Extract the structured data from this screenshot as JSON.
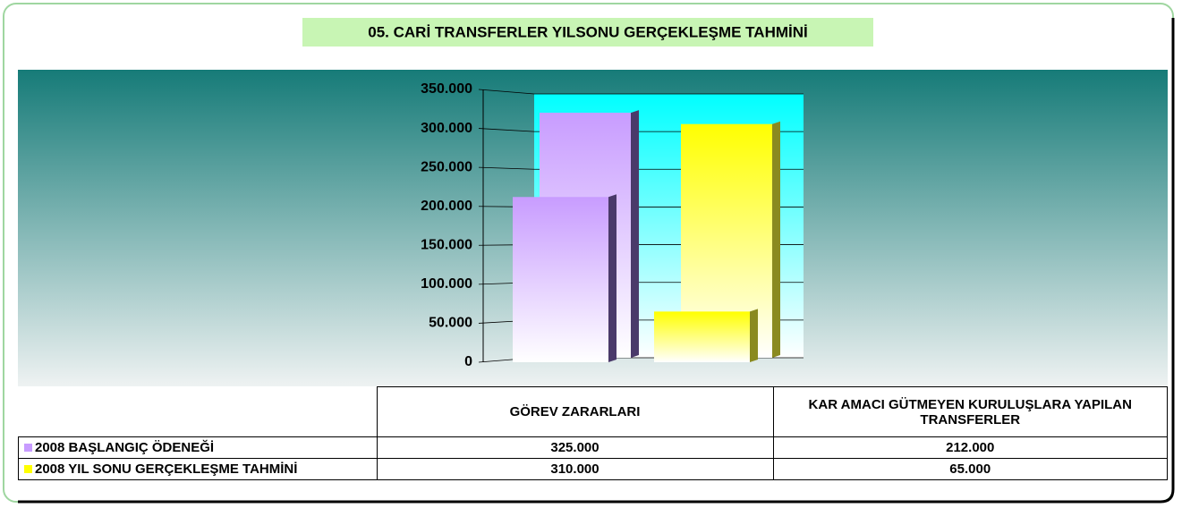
{
  "chart_data": {
    "type": "bar3d",
    "title": "05. CARİ TRANSFERLER YILSONU GERÇEKLEŞME TAHMİNİ",
    "categories": [
      "GÖREV ZARARLARI",
      "KAR AMACI GÜTMEYEN KURULUŞLARA YAPILAN TRANSFERLER"
    ],
    "series": [
      {
        "name": "2008 BAŞLANGIÇ ÖDENEĞİ",
        "color": "#c89cff",
        "values": [
          325000,
          212000
        ],
        "value_labels": [
          "325.000",
          "212.000"
        ]
      },
      {
        "name": "2008 YIL SONU GERÇEKLEŞME TAHMİNİ",
        "color": "#ffff00",
        "values": [
          310000,
          65000
        ],
        "value_labels": [
          "310.000",
          "65.000"
        ]
      }
    ],
    "ylim": [
      0,
      350000
    ],
    "yticks": [
      0,
      {
        "value": 50000,
        "label": "50.000"
      },
      {
        "value": 100000,
        "label": "100.000"
      },
      {
        "value": 150000,
        "label": "150.000"
      },
      {
        "value": 200000,
        "label": "200.000"
      },
      {
        "value": 250000,
        "label": "250.000"
      },
      {
        "value": 300000,
        "label": "300.000"
      },
      {
        "value": 350000,
        "label": "350.000"
      }
    ],
    "grid": true
  }
}
